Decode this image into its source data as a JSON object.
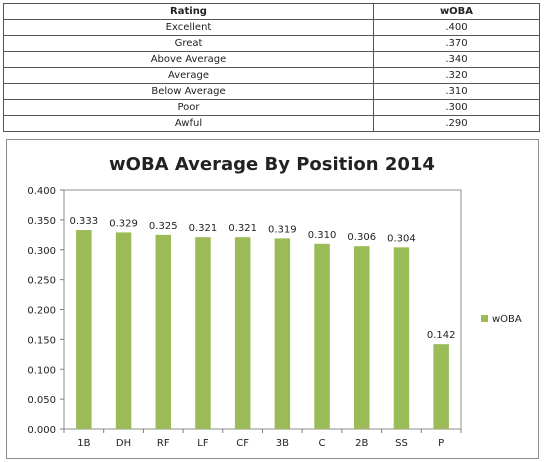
{
  "rating_table": {
    "headers": [
      "Rating",
      "wOBA"
    ],
    "rows": [
      {
        "rating": "Excellent",
        "woba": ".400"
      },
      {
        "rating": "Great",
        "woba": ".370"
      },
      {
        "rating": "Above Average",
        "woba": ".340"
      },
      {
        "rating": "Average",
        "woba": ".320"
      },
      {
        "rating": "Below Average",
        "woba": ".310"
      },
      {
        "rating": "Poor",
        "woba": ".300"
      },
      {
        "rating": "Awful",
        "woba": ".290"
      }
    ]
  },
  "chart_data": {
    "type": "bar",
    "title": "wOBA Average By Position 2014",
    "categories": [
      "1B",
      "DH",
      "RF",
      "LF",
      "CF",
      "3B",
      "C",
      "2B",
      "SS",
      "P"
    ],
    "series": [
      {
        "name": "wOBA",
        "values": [
          0.333,
          0.329,
          0.325,
          0.321,
          0.321,
          0.319,
          0.31,
          0.306,
          0.304,
          0.142
        ],
        "labels": [
          "0.333",
          "0.329",
          "0.325",
          "0.321",
          "0.321",
          "0.319",
          "0.310",
          "0.306",
          "0.304",
          "0.142"
        ]
      }
    ],
    "ylim": [
      0,
      0.4
    ],
    "yticks": [
      0.0,
      0.05,
      0.1,
      0.15,
      0.2,
      0.25,
      0.3,
      0.35,
      0.4
    ],
    "ytick_labels": [
      "0.000",
      "0.050",
      "0.100",
      "0.150",
      "0.200",
      "0.250",
      "0.300",
      "0.350",
      "0.400"
    ],
    "xlabel": "",
    "ylabel": "",
    "grid": false,
    "legend": "right",
    "colors": {
      "bar": "#9bbb59",
      "plot_border": "#8c8c8c",
      "axis": "#7f7f7f"
    }
  }
}
